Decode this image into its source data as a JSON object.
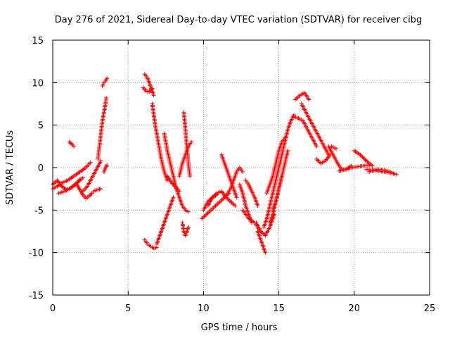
{
  "chart_data": {
    "type": "scatter",
    "title": "Day 276 of 2021, Sidereal Day-to-day VTEC variation (SDTVAR) for receiver cibg",
    "xlabel": "GPS time / hours",
    "ylabel": "SDTVAR / TECUs",
    "xlim": [
      0,
      25
    ],
    "ylim": [
      -15,
      15
    ],
    "xticks": [
      0,
      5,
      10,
      15,
      20,
      25
    ],
    "yticks": [
      -15,
      -10,
      -5,
      0,
      5,
      10,
      15
    ],
    "grid": true,
    "marker": "+",
    "color": "#ff0000",
    "tracks": [
      {
        "x": [
          0.0,
          0.3,
          0.6,
          1.0,
          1.4,
          1.8,
          2.2,
          2.5
        ],
        "y": [
          -2.5,
          -2.2,
          -1.8,
          -1.5,
          -1.0,
          -0.5,
          0.0,
          0.6
        ]
      },
      {
        "x": [
          0.0,
          0.3,
          0.6,
          0.9,
          1.2,
          1.5,
          1.8
        ],
        "y": [
          -2.0,
          -1.5,
          -2.2,
          -2.6,
          -2.4,
          -2.0,
          -1.4
        ]
      },
      {
        "x": [
          0.4,
          0.8,
          1.2,
          1.6,
          2.0
        ],
        "y": [
          -3.0,
          -2.8,
          -2.4,
          -1.8,
          -1.2
        ]
      },
      {
        "x": [
          1.1,
          1.25,
          1.4
        ],
        "y": [
          3.0,
          2.8,
          2.5
        ]
      },
      {
        "x": [
          1.6,
          1.8,
          2.0,
          2.2,
          2.4,
          2.6,
          2.8,
          3.0,
          3.2
        ],
        "y": [
          -2.0,
          -2.6,
          -3.2,
          -3.6,
          -3.4,
          -3.0,
          -2.7,
          -2.6,
          -2.5
        ]
      },
      {
        "x": [
          2.0,
          2.3,
          2.6,
          2.9,
          3.2
        ],
        "y": [
          -2.8,
          -2.2,
          -1.2,
          -0.2,
          0.8
        ]
      },
      {
        "x": [
          3.0,
          3.1,
          3.2,
          3.3,
          3.4,
          3.5,
          3.55
        ],
        "y": [
          1.0,
          2.5,
          4.0,
          5.5,
          6.5,
          7.5,
          8.2
        ]
      },
      {
        "x": [
          3.3,
          3.4,
          3.5,
          3.6
        ],
        "y": [
          9.6,
          10.0,
          10.2,
          10.5
        ]
      },
      {
        "x": [
          3.4,
          3.5,
          3.6
        ],
        "y": [
          -0.5,
          0.0,
          0.3
        ]
      },
      {
        "x": [
          6.1,
          6.3,
          6.5,
          6.7
        ],
        "y": [
          11.0,
          10.5,
          9.5,
          8.5
        ]
      },
      {
        "x": [
          6.0,
          6.2,
          6.4,
          6.6
        ],
        "y": [
          9.4,
          9.0,
          8.9,
          9.3
        ]
      },
      {
        "x": [
          6.6,
          6.8,
          7.0,
          7.2,
          7.4,
          7.6
        ],
        "y": [
          7.5,
          5.0,
          3.0,
          1.0,
          -0.5,
          -1.5
        ]
      },
      {
        "x": [
          7.4,
          7.6,
          7.8,
          8.0,
          8.2
        ],
        "y": [
          4.0,
          2.0,
          0.5,
          -1.0,
          -2.5
        ]
      },
      {
        "x": [
          7.6,
          7.8,
          8.0,
          8.2,
          8.4
        ],
        "y": [
          -1.0,
          -1.6,
          -2.0,
          -2.4,
          -2.8
        ]
      },
      {
        "x": [
          6.1,
          6.3,
          6.5,
          6.7,
          6.9
        ],
        "y": [
          -8.5,
          -9.0,
          -9.3,
          -9.5,
          -9.4
        ]
      },
      {
        "x": [
          6.9,
          7.1,
          7.3,
          7.5,
          7.7,
          7.9,
          8.0
        ],
        "y": [
          -9.0,
          -8.0,
          -7.0,
          -6.0,
          -5.0,
          -4.0,
          -3.5
        ]
      },
      {
        "x": [
          8.2,
          8.4,
          8.6,
          8.8,
          9.0
        ],
        "y": [
          -2.5,
          -3.5,
          -4.5,
          -5.0,
          -5.2
        ]
      },
      {
        "x": [
          8.7,
          8.8,
          8.9,
          9.0,
          9.1
        ],
        "y": [
          6.5,
          4.5,
          2.5,
          0.5,
          -1.0
        ]
      },
      {
        "x": [
          8.4,
          8.6,
          8.8,
          9.0,
          9.2
        ],
        "y": [
          -1.0,
          0.5,
          1.5,
          2.5,
          3.0
        ]
      },
      {
        "x": [
          8.6,
          8.7,
          8.8,
          8.9,
          9.0
        ],
        "y": [
          -6.5,
          -7.5,
          -8.0,
          -7.5,
          -7.0
        ]
      },
      {
        "x": [
          9.9,
          10.2,
          10.5,
          10.8,
          11.1,
          11.4,
          11.7
        ],
        "y": [
          -6.0,
          -5.5,
          -5.0,
          -4.5,
          -4.0,
          -3.5,
          -3.0
        ]
      },
      {
        "x": [
          10.0,
          10.3,
          10.6,
          10.9
        ],
        "y": [
          -5.0,
          -4.0,
          -3.5,
          -3.2
        ]
      },
      {
        "x": [
          10.3,
          10.6,
          10.9,
          11.2,
          11.5,
          11.8,
          12.1
        ],
        "y": [
          -4.5,
          -3.5,
          -3.0,
          -2.8,
          -3.5,
          -4.0,
          -4.5
        ]
      },
      {
        "x": [
          11.2,
          11.4,
          11.6,
          11.8,
          12.0,
          12.2
        ],
        "y": [
          1.5,
          0.5,
          -0.5,
          -1.5,
          -2.5,
          -3.5
        ]
      },
      {
        "x": [
          11.6,
          11.8,
          12.0,
          12.2,
          12.4,
          12.6
        ],
        "y": [
          -3.0,
          -2.5,
          -1.5,
          -0.5,
          0.0,
          -0.5
        ]
      },
      {
        "x": [
          12.4,
          12.6,
          12.8,
          13.0,
          13.2
        ],
        "y": [
          -2.0,
          -3.0,
          -4.5,
          -5.5,
          -6.5
        ]
      },
      {
        "x": [
          12.6,
          12.8,
          13.0,
          13.2,
          13.4,
          13.6,
          13.8
        ],
        "y": [
          -5.0,
          -5.5,
          -6.0,
          -6.2,
          -6.5,
          -7.0,
          -7.5
        ]
      },
      {
        "x": [
          12.8,
          13.0,
          13.2,
          13.4,
          13.6
        ],
        "y": [
          -1.5,
          -2.0,
          -2.8,
          -3.5,
          -4.5
        ]
      },
      {
        "x": [
          13.6,
          13.8,
          14.0,
          14.1
        ],
        "y": [
          -7.5,
          -8.5,
          -9.5,
          -10.0
        ]
      },
      {
        "x": [
          13.5,
          13.8,
          14.1,
          14.4,
          14.7
        ],
        "y": [
          -6.5,
          -7.5,
          -8.0,
          -7.0,
          -5.5
        ]
      },
      {
        "x": [
          14.0,
          14.2,
          14.4,
          14.6,
          14.8,
          15.0
        ],
        "y": [
          -7.0,
          -6.0,
          -4.5,
          -3.0,
          -1.5,
          0.0
        ]
      },
      {
        "x": [
          14.4,
          14.6,
          14.8,
          15.0,
          15.2
        ],
        "y": [
          -6.5,
          -5.5,
          -4.0,
          -2.5,
          -1.0
        ]
      },
      {
        "x": [
          14.2,
          14.4,
          14.6,
          14.8,
          15.0,
          15.2,
          15.4
        ],
        "y": [
          -3.0,
          -2.0,
          -1.0,
          0.5,
          2.0,
          3.0,
          3.5
        ]
      },
      {
        "x": [
          15.0,
          15.2,
          15.4,
          15.6,
          15.8,
          16.0
        ],
        "y": [
          0.0,
          1.5,
          3.0,
          4.5,
          5.5,
          6.2
        ]
      },
      {
        "x": [
          14.6,
          14.8,
          15.0,
          15.2,
          15.4,
          15.6
        ],
        "y": [
          -5.0,
          -4.0,
          -2.5,
          -1.0,
          0.5,
          2.0
        ]
      },
      {
        "x": [
          16.1,
          16.4,
          16.7,
          17.0
        ],
        "y": [
          8.0,
          8.5,
          8.8,
          8.0
        ]
      },
      {
        "x": [
          16.5,
          16.8,
          17.1,
          17.4,
          17.7,
          18.0,
          18.3
        ],
        "y": [
          7.5,
          6.5,
          5.5,
          4.5,
          3.5,
          2.5,
          1.5
        ]
      },
      {
        "x": [
          16.0,
          16.3,
          16.6,
          16.9,
          17.2,
          17.5
        ],
        "y": [
          6.0,
          5.8,
          5.5,
          4.5,
          3.5,
          2.5
        ]
      },
      {
        "x": [
          17.5,
          17.8,
          18.1,
          18.4
        ],
        "y": [
          1.0,
          0.5,
          0.8,
          1.5
        ]
      },
      {
        "x": [
          18.3,
          18.6,
          18.9,
          19.2,
          19.5,
          19.8
        ],
        "y": [
          2.5,
          1.5,
          0.5,
          -0.3,
          -0.2,
          0.2
        ]
      },
      {
        "x": [
          18.5,
          18.8
        ],
        "y": [
          2.5,
          2.2
        ]
      },
      {
        "x": [
          19.0,
          19.4,
          19.8,
          20.2,
          20.6,
          21.0
        ],
        "y": [
          -0.4,
          -0.2,
          0.0,
          0.1,
          0.2,
          0.3
        ]
      },
      {
        "x": [
          20.0,
          20.4,
          20.8,
          21.2
        ],
        "y": [
          2.0,
          1.5,
          0.8,
          0.2
        ]
      },
      {
        "x": [
          20.8,
          21.2,
          21.6,
          22.0,
          22.4,
          22.8
        ],
        "y": [
          -0.2,
          -0.3,
          -0.4,
          -0.5,
          -0.6,
          -0.8
        ]
      },
      {
        "x": [
          21.0,
          21.5,
          22.0,
          22.5
        ],
        "y": [
          -0.5,
          -0.2,
          -0.3,
          -0.6
        ]
      }
    ]
  }
}
